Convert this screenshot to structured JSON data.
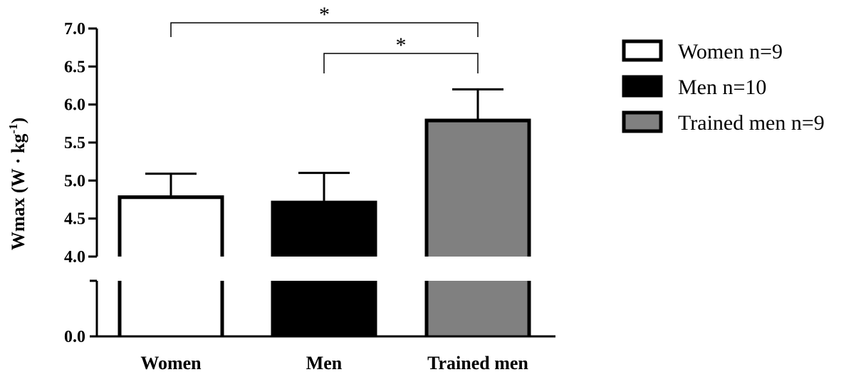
{
  "chart_data": {
    "type": "bar",
    "ylabel_main": "Wmax (W · kg",
    "ylabel_sup": "-1",
    "ylabel_close": ")",
    "categories": [
      "Women",
      "Men",
      "Trained men"
    ],
    "series": [
      {
        "name": "Women n=9",
        "value": 4.78,
        "error": 0.31,
        "color": "#ffffff"
      },
      {
        "name": "Men n=10",
        "value": 4.71,
        "error": 0.39,
        "color": "#000000"
      },
      {
        "name": "Trained men n=9",
        "value": 5.79,
        "error": 0.41,
        "color": "#808080"
      }
    ],
    "y_ticks_upper": [
      "4.0",
      "4.5",
      "5.0",
      "5.5",
      "6.0",
      "6.5",
      "7.0"
    ],
    "y_ticks_lower": [
      "0.0"
    ],
    "y_upper_range": [
      4.0,
      7.0
    ],
    "y_axis_break": true,
    "legend_position": "right",
    "annotations": [
      {
        "from": "Women",
        "to": "Trained men",
        "label": "*"
      },
      {
        "from": "Men",
        "to": "Trained men",
        "label": "*"
      }
    ]
  }
}
